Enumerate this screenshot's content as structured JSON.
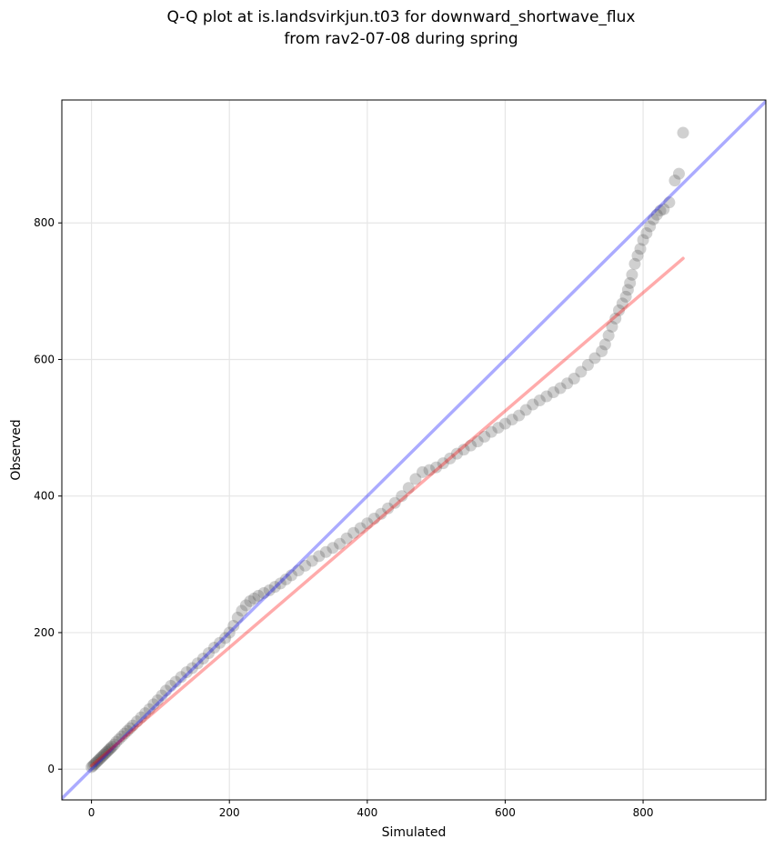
{
  "chart_data": {
    "type": "scatter",
    "title_lines": [
      "Q-Q plot at is.landsvirkjun.t03 for downward_shortwave_flux",
      "from rav2-07-08 during spring"
    ],
    "xlabel": "Simulated",
    "ylabel": "Observed",
    "xlim": [
      -43,
      978
    ],
    "ylim": [
      -45,
      980
    ],
    "xticks": [
      0,
      200,
      400,
      600,
      800
    ],
    "yticks": [
      0,
      200,
      400,
      600,
      800
    ],
    "grid": true,
    "colors": {
      "points": "#444444",
      "identity_line": "#0000ff",
      "fit_line": "#ff0000"
    },
    "identity_line": {
      "x": [
        -43,
        978
      ],
      "y": [
        -43,
        978
      ]
    },
    "fit_line": {
      "x": [
        0,
        858
      ],
      "y": [
        5,
        748
      ]
    },
    "quantiles": {
      "x": [
        0,
        2,
        4,
        6,
        8,
        10,
        12,
        14,
        16,
        18,
        20,
        22,
        24,
        26,
        28,
        30,
        33,
        36,
        40,
        44,
        48,
        52,
        56,
        60,
        66,
        72,
        78,
        84,
        90,
        96,
        102,
        108,
        115,
        122,
        130,
        138,
        146,
        154,
        162,
        170,
        178,
        186,
        194,
        200,
        206,
        212,
        218,
        224,
        230,
        236,
        242,
        250,
        258,
        266,
        274,
        282,
        290,
        300,
        310,
        320,
        330,
        340,
        350,
        360,
        370,
        380,
        390,
        400,
        410,
        420,
        430,
        440,
        450,
        460,
        470,
        480,
        490,
        500,
        510,
        520,
        530,
        540,
        550,
        560,
        570,
        580,
        590,
        600,
        610,
        620,
        630,
        640,
        650,
        660,
        670,
        680,
        690,
        700,
        710,
        720,
        730,
        740,
        745,
        750,
        755,
        760,
        765,
        770,
        775,
        778,
        781,
        784,
        788,
        792,
        796,
        800,
        805,
        810,
        815,
        820,
        825,
        830,
        838,
        846,
        852,
        858
      ],
      "y": [
        3,
        5,
        7,
        9,
        11,
        13,
        15,
        17,
        19,
        21,
        23,
        25,
        27,
        29,
        31,
        33,
        36,
        40,
        44,
        48,
        52,
        56,
        60,
        64,
        70,
        76,
        82,
        88,
        95,
        101,
        108,
        115,
        122,
        128,
        135,
        142,
        148,
        155,
        162,
        170,
        178,
        185,
        192,
        200,
        210,
        222,
        232,
        240,
        246,
        250,
        254,
        258,
        262,
        267,
        272,
        278,
        284,
        291,
        298,
        305,
        312,
        318,
        324,
        330,
        338,
        346,
        353,
        360,
        367,
        374,
        382,
        390,
        400,
        412,
        425,
        435,
        438,
        442,
        448,
        455,
        462,
        468,
        474,
        480,
        487,
        494,
        500,
        506,
        512,
        518,
        526,
        534,
        540,
        546,
        552,
        558,
        565,
        572,
        582,
        592,
        602,
        612,
        622,
        635,
        648,
        660,
        672,
        682,
        692,
        702,
        712,
        724,
        740,
        752,
        762,
        775,
        785,
        795,
        805,
        812,
        818,
        820,
        830,
        862,
        872,
        932
      ]
    }
  }
}
